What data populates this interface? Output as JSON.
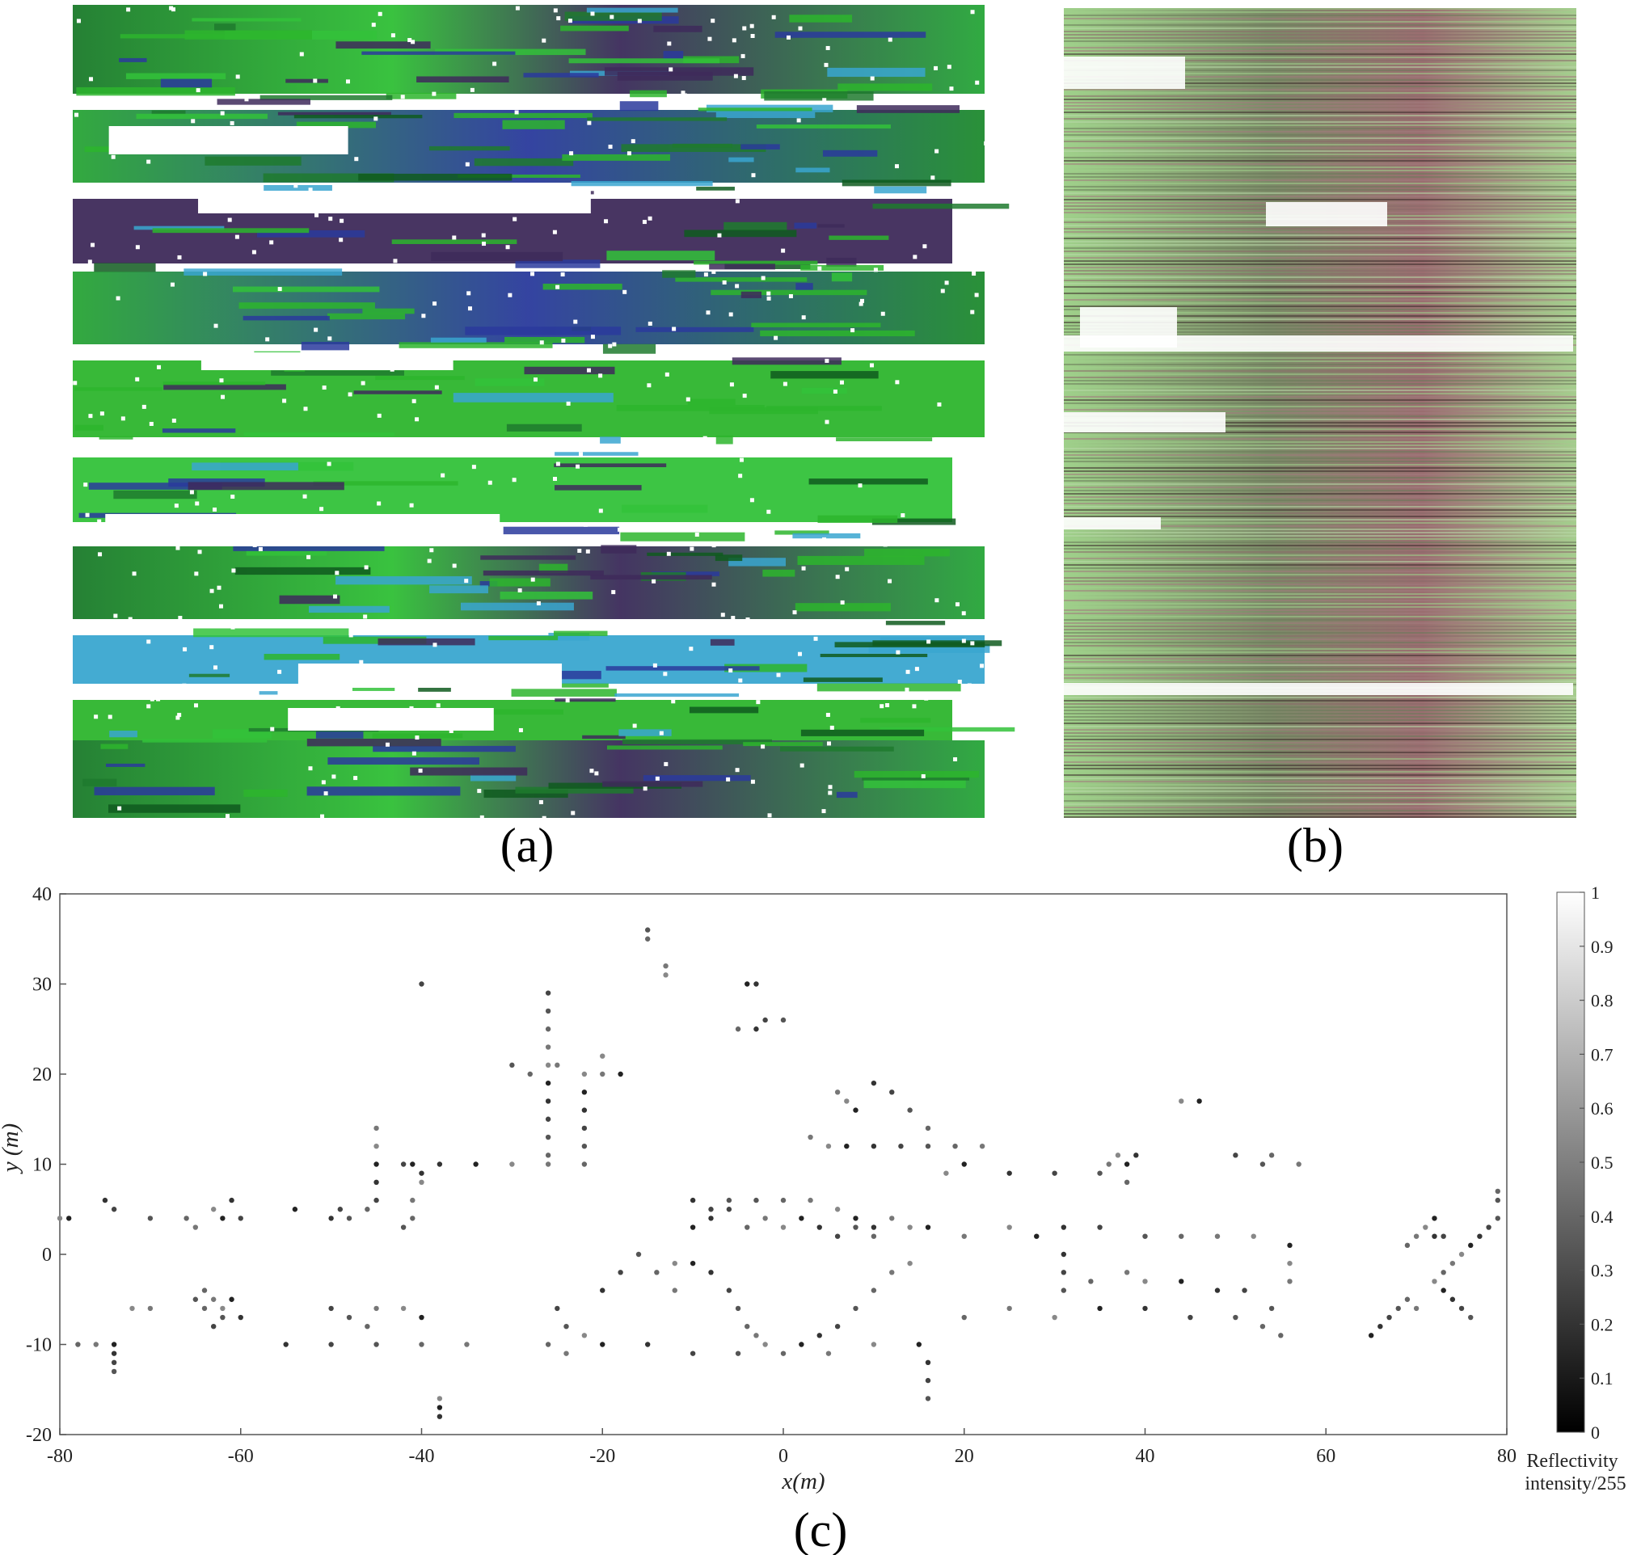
{
  "panels": {
    "a": {
      "label": "(a)"
    },
    "b": {
      "label": "(b)"
    },
    "c": {
      "label": "(c)"
    }
  },
  "colors": {
    "green": "#2db52d",
    "dark_green": "#0f5a1e",
    "purple": "#3e2a5a",
    "blue": "#2a3a9c",
    "cyan": "#3aa6d0",
    "pale_green": "#9fd08a",
    "mauve": "#8a6a6a",
    "dark_brown": "#3a2a2a"
  },
  "chart_data": {
    "type": "scatter",
    "description": "LiDAR point cloud, top-down view, grayscale by reflectivity",
    "title": "",
    "xlabel": "x(m)",
    "ylabel": "y (m)",
    "xlim": [
      -80,
      80
    ],
    "ylim": [
      -20,
      40
    ],
    "xticks": [
      -80,
      -60,
      -40,
      -20,
      0,
      20,
      40,
      60,
      80
    ],
    "yticks": [
      -20,
      -10,
      0,
      10,
      20,
      30,
      40
    ],
    "colorbar": {
      "label_line1": "Reflectivity",
      "label_line2": "intensity/255",
      "range": [
        0,
        1
      ],
      "ticks": [
        0,
        0.1,
        0.2,
        0.3,
        0.4,
        0.5,
        0.6,
        0.7,
        0.8,
        0.9,
        1
      ],
      "colormap": "gray"
    },
    "series": [
      {
        "points": [
          [
            -74,
            -10
          ],
          [
            -74,
            -11
          ],
          [
            -74,
            -12
          ],
          [
            -74,
            -13
          ],
          [
            -78,
            -10
          ],
          [
            -76,
            -10
          ],
          [
            -80,
            4
          ],
          [
            -79,
            4
          ],
          [
            -75,
            6
          ],
          [
            -74,
            5
          ],
          [
            -70,
            4
          ],
          [
            -66,
            4
          ],
          [
            -65,
            3
          ],
          [
            -63,
            5
          ],
          [
            -62,
            4
          ],
          [
            -61,
            6
          ],
          [
            -60,
            4
          ],
          [
            -65,
            -5
          ],
          [
            -64,
            -6
          ],
          [
            -63,
            -5
          ],
          [
            -62,
            -6
          ],
          [
            -61,
            -5
          ],
          [
            -60,
            -7
          ],
          [
            -63,
            -8
          ],
          [
            -62,
            -7
          ],
          [
            -64,
            -4
          ],
          [
            -70,
            -6
          ],
          [
            -72,
            -6
          ],
          [
            -54,
            5
          ],
          [
            -50,
            4
          ],
          [
            -49,
            5
          ],
          [
            -48,
            4
          ],
          [
            -46,
            5
          ],
          [
            -45,
            14
          ],
          [
            -45,
            12
          ],
          [
            -45,
            10
          ],
          [
            -45,
            8
          ],
          [
            -45,
            6
          ],
          [
            -42,
            3
          ],
          [
            -41,
            4
          ],
          [
            -41,
            6
          ],
          [
            -40,
            8
          ],
          [
            -41,
            10
          ],
          [
            -40,
            9
          ],
          [
            -50,
            -6
          ],
          [
            -48,
            -7
          ],
          [
            -46,
            -8
          ],
          [
            -45,
            -6
          ],
          [
            -42,
            -6
          ],
          [
            -40,
            -7
          ],
          [
            -55,
            -10
          ],
          [
            -50,
            -10
          ],
          [
            -45,
            -10
          ],
          [
            -40,
            -10
          ],
          [
            -35,
            -10
          ],
          [
            -38,
            -16
          ],
          [
            -38,
            -17
          ],
          [
            -38,
            -18
          ],
          [
            -40,
            30
          ],
          [
            -15,
            36
          ],
          [
            -15,
            35
          ],
          [
            -13,
            32
          ],
          [
            -13,
            31
          ],
          [
            -4,
            30
          ],
          [
            -3,
            30
          ],
          [
            -26,
            29
          ],
          [
            -26,
            27
          ],
          [
            -26,
            25
          ],
          [
            -26,
            23
          ],
          [
            -26,
            21
          ],
          [
            -26,
            19
          ],
          [
            -26,
            17
          ],
          [
            -26,
            15
          ],
          [
            -26,
            13
          ],
          [
            -26,
            11
          ],
          [
            -26,
            10
          ],
          [
            -30,
            10
          ],
          [
            -34,
            10
          ],
          [
            -38,
            10
          ],
          [
            -42,
            10
          ],
          [
            -30,
            21
          ],
          [
            -28,
            20
          ],
          [
            -25,
            21
          ],
          [
            -22,
            20
          ],
          [
            -22,
            18
          ],
          [
            -22,
            16
          ],
          [
            -22,
            14
          ],
          [
            -22,
            12
          ],
          [
            -22,
            10
          ],
          [
            -20,
            20
          ],
          [
            -20,
            22
          ],
          [
            -18,
            20
          ],
          [
            -3,
            25
          ],
          [
            -2,
            26
          ],
          [
            0,
            26
          ],
          [
            -5,
            25
          ],
          [
            6,
            18
          ],
          [
            7,
            17
          ],
          [
            8,
            16
          ],
          [
            10,
            19
          ],
          [
            12,
            18
          ],
          [
            14,
            16
          ],
          [
            16,
            14
          ],
          [
            3,
            13
          ],
          [
            5,
            12
          ],
          [
            7,
            12
          ],
          [
            10,
            12
          ],
          [
            13,
            12
          ],
          [
            16,
            12
          ],
          [
            19,
            12
          ],
          [
            22,
            12
          ],
          [
            18,
            9
          ],
          [
            20,
            10
          ],
          [
            25,
            9
          ],
          [
            30,
            9
          ],
          [
            35,
            9
          ],
          [
            38,
            8
          ],
          [
            36,
            10
          ],
          [
            37,
            11
          ],
          [
            38,
            10
          ],
          [
            39,
            11
          ],
          [
            50,
            11
          ],
          [
            53,
            10
          ],
          [
            54,
            11
          ],
          [
            57,
            10
          ],
          [
            44,
            17
          ],
          [
            46,
            17
          ],
          [
            -10,
            6
          ],
          [
            -8,
            5
          ],
          [
            -6,
            6
          ],
          [
            -4,
            3
          ],
          [
            -2,
            4
          ],
          [
            0,
            3
          ],
          [
            2,
            4
          ],
          [
            4,
            3
          ],
          [
            6,
            2
          ],
          [
            8,
            3
          ],
          [
            10,
            2
          ],
          [
            12,
            4
          ],
          [
            14,
            3
          ],
          [
            16,
            3
          ],
          [
            -20,
            -4
          ],
          [
            -18,
            -2
          ],
          [
            -16,
            0
          ],
          [
            -14,
            -2
          ],
          [
            -12,
            -4
          ],
          [
            -12,
            -1
          ],
          [
            -10,
            -1
          ],
          [
            -8,
            -2
          ],
          [
            -6,
            -4
          ],
          [
            -5,
            -6
          ],
          [
            -4,
            -8
          ],
          [
            -3,
            -9
          ],
          [
            -2,
            -10
          ],
          [
            2,
            -10
          ],
          [
            4,
            -9
          ],
          [
            6,
            -8
          ],
          [
            8,
            -6
          ],
          [
            10,
            -4
          ],
          [
            12,
            -2
          ],
          [
            14,
            -1
          ],
          [
            -10,
            3
          ],
          [
            -8,
            4
          ],
          [
            -6,
            5
          ],
          [
            -3,
            6
          ],
          [
            0,
            6
          ],
          [
            3,
            6
          ],
          [
            6,
            5
          ],
          [
            8,
            4
          ],
          [
            10,
            3
          ],
          [
            -25,
            -6
          ],
          [
            -24,
            -8
          ],
          [
            -26,
            -10
          ],
          [
            -24,
            -11
          ],
          [
            -22,
            -9
          ],
          [
            -20,
            -10
          ],
          [
            -15,
            -10
          ],
          [
            -10,
            -11
          ],
          [
            -5,
            -11
          ],
          [
            0,
            -11
          ],
          [
            5,
            -11
          ],
          [
            10,
            -10
          ],
          [
            15,
            -10
          ],
          [
            16,
            -12
          ],
          [
            16,
            -14
          ],
          [
            16,
            -16
          ],
          [
            20,
            -7
          ],
          [
            25,
            -6
          ],
          [
            30,
            -7
          ],
          [
            35,
            -6
          ],
          [
            40,
            -6
          ],
          [
            45,
            -7
          ],
          [
            50,
            -7
          ],
          [
            53,
            -8
          ],
          [
            20,
            2
          ],
          [
            25,
            3
          ],
          [
            28,
            2
          ],
          [
            31,
            3
          ],
          [
            35,
            3
          ],
          [
            40,
            2
          ],
          [
            44,
            2
          ],
          [
            48,
            2
          ],
          [
            52,
            2
          ],
          [
            56,
            1
          ],
          [
            31,
            0
          ],
          [
            31,
            -2
          ],
          [
            31,
            -4
          ],
          [
            34,
            -3
          ],
          [
            38,
            -2
          ],
          [
            40,
            -3
          ],
          [
            44,
            -3
          ],
          [
            48,
            -4
          ],
          [
            51,
            -4
          ],
          [
            54,
            -6
          ],
          [
            55,
            -9
          ],
          [
            56,
            -3
          ],
          [
            56,
            -1
          ],
          [
            65,
            -9
          ],
          [
            66,
            -8
          ],
          [
            67,
            -7
          ],
          [
            68,
            -6
          ],
          [
            69,
            -5
          ],
          [
            70,
            -6
          ],
          [
            72,
            -3
          ],
          [
            73,
            -4
          ],
          [
            74,
            -5
          ],
          [
            75,
            -6
          ],
          [
            76,
            -7
          ],
          [
            73,
            -2
          ],
          [
            74,
            -1
          ],
          [
            75,
            0
          ],
          [
            76,
            1
          ],
          [
            77,
            2
          ],
          [
            78,
            3
          ],
          [
            79,
            4
          ],
          [
            69,
            1
          ],
          [
            70,
            2
          ],
          [
            71,
            3
          ],
          [
            72,
            4
          ],
          [
            72,
            2
          ],
          [
            73,
            2
          ],
          [
            79,
            6
          ],
          [
            79,
            7
          ]
        ]
      }
    ]
  }
}
